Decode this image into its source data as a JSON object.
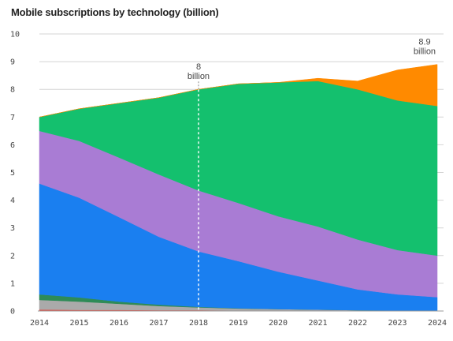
{
  "chart_data": {
    "type": "area",
    "stacked": true,
    "title": "Mobile subscriptions by technology (billion)",
    "xlabel": "",
    "ylabel": "",
    "x": [
      2014,
      2015,
      2016,
      2017,
      2018,
      2019,
      2020,
      2021,
      2022,
      2023,
      2024
    ],
    "xlim": [
      2014,
      2024
    ],
    "ylim": [
      0,
      10
    ],
    "yticks": [
      0,
      1,
      2,
      3,
      4,
      5,
      6,
      7,
      8,
      9,
      10
    ],
    "grid": true,
    "legend": "none",
    "series": [
      {
        "color": "#e8453c",
        "values": [
          0.05,
          0.04,
          0.04,
          0.03,
          0.03,
          0.02,
          0.02,
          0.02,
          0.01,
          0.01,
          0.01
        ]
      },
      {
        "color": "#aaaaaa",
        "values": [
          0.35,
          0.3,
          0.22,
          0.15,
          0.1,
          0.07,
          0.05,
          0.03,
          0.02,
          0.01,
          0.01
        ]
      },
      {
        "color": "#2e8b57",
        "values": [
          0.2,
          0.15,
          0.08,
          0.05,
          0.02,
          0.01,
          0.0,
          0.0,
          0.0,
          0.0,
          0.0
        ]
      },
      {
        "color": "#1a7ff0",
        "values": [
          4.0,
          3.6,
          3.05,
          2.45,
          2.0,
          1.7,
          1.35,
          1.05,
          0.75,
          0.58,
          0.48
        ]
      },
      {
        "color": "#a97cd4",
        "values": [
          1.9,
          2.05,
          2.15,
          2.25,
          2.2,
          2.1,
          2.0,
          1.95,
          1.8,
          1.6,
          1.5
        ]
      },
      {
        "color": "#14c06e",
        "values": [
          0.5,
          1.16,
          1.96,
          2.77,
          3.65,
          4.3,
          4.83,
          5.25,
          5.42,
          5.4,
          5.4
        ]
      },
      {
        "color": "#ff8a00",
        "values": [
          0.0,
          0.0,
          0.0,
          0.0,
          0.0,
          0.0,
          0.0,
          0.1,
          0.3,
          1.1,
          1.5
        ]
      }
    ],
    "annotations": [
      {
        "x": 2018,
        "lines": [
          "8",
          "billion"
        ],
        "dashed_marker": true
      },
      {
        "x": 2024,
        "lines": [
          "8.9",
          "billion"
        ],
        "dashed_marker": false
      }
    ]
  }
}
